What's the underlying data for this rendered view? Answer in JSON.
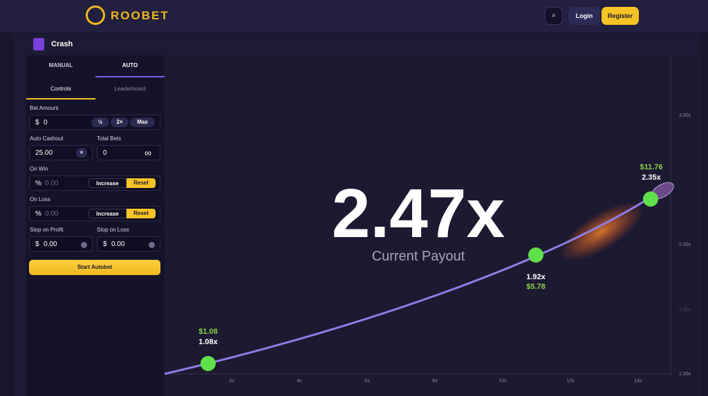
{
  "header": {
    "logo": "ROOBET",
    "login": "Login",
    "register": "Register"
  },
  "game": {
    "title": "Crash"
  },
  "tabs": [
    "MANUAL",
    "AUTO"
  ],
  "subtabs": [
    "Controls",
    "Leaderboard"
  ],
  "form": {
    "bet_amount": {
      "label": "Bet Amount",
      "currency": "$",
      "value": "0",
      "buttons": [
        "½",
        "2×",
        "Max"
      ]
    },
    "auto_cashout": {
      "label": "Auto Cashout",
      "value": "25.00"
    },
    "total_bets": {
      "label": "Total Bets",
      "value": "0"
    },
    "on_win": {
      "label": "On Win",
      "unit": "%",
      "value": "0.00",
      "increase": "Increase",
      "reset": "Reset"
    },
    "on_loss": {
      "label": "On Loss",
      "unit": "%",
      "value": "0.00",
      "increase": "Increase",
      "reset": "Reset"
    },
    "stop_on_profit": {
      "label": "Stop on Profit",
      "currency": "$",
      "value": "0.00"
    },
    "stop_on_loss": {
      "label": "Stop on Loss",
      "currency": "$",
      "value": "0.00"
    },
    "start": "Start Autobet"
  },
  "graph": {
    "payout": "2.47x",
    "payout_label": "Current Payout",
    "y_axis": [
      "3.00x",
      "2.00x",
      "1.50x",
      "1.00x"
    ],
    "x_axis": [
      "2s",
      "4s",
      "6s",
      "8s",
      "10s",
      "12s",
      "14s"
    ],
    "cashouts": [
      {
        "amount": "$1.08",
        "multiplier": "1.08x"
      },
      {
        "multiplier": "1.92x",
        "amount": "$5.78"
      },
      {
        "amount": "$11.76",
        "multiplier": "2.35x"
      }
    ]
  }
}
